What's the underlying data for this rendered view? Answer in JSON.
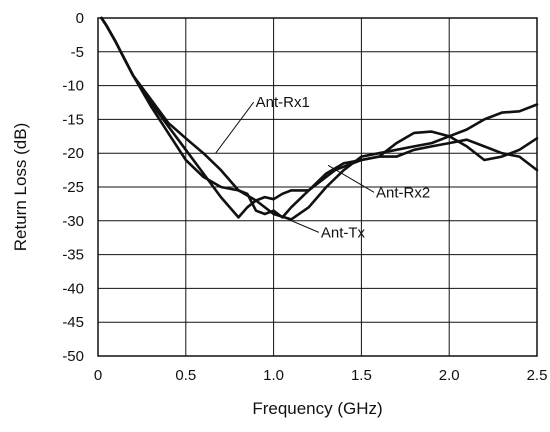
{
  "chart_data": {
    "type": "line",
    "title": "",
    "xlabel": "Frequency (GHz)",
    "ylabel": "Return Loss (dB)",
    "xlim": [
      0,
      2.5
    ],
    "ylim": [
      -50,
      0
    ],
    "x_ticks": [
      "0",
      "0.5",
      "1.0",
      "1.5",
      "2.0",
      "2.5"
    ],
    "y_ticks": [
      "0",
      "-5",
      "-10",
      "-15",
      "-20",
      "-25",
      "-30",
      "-35",
      "-40",
      "-45",
      "-50"
    ],
    "grid": true,
    "legend": "none",
    "series": [
      {
        "name": "Ant-Rx1",
        "x": [
          0.02,
          0.05,
          0.1,
          0.15,
          0.2,
          0.3,
          0.4,
          0.5,
          0.6,
          0.7,
          0.8,
          0.9,
          1.0,
          1.1,
          1.2,
          1.3,
          1.4,
          1.5,
          1.6,
          1.7,
          1.8,
          1.9,
          2.0,
          2.1,
          2.2,
          2.3,
          2.4,
          2.5
        ],
        "y": [
          0,
          -1.2,
          -3.5,
          -6.0,
          -8.5,
          -12.0,
          -15.5,
          -17.8,
          -20.0,
          -22.5,
          -25.5,
          -27.0,
          -29.0,
          -29.8,
          -28.0,
          -25.0,
          -22.5,
          -20.5,
          -20.0,
          -19.5,
          -19.0,
          -18.5,
          -17.5,
          -16.5,
          -15.0,
          -14.0,
          -13.8,
          -12.8
        ]
      },
      {
        "name": "Ant-Rx2",
        "x": [
          0.02,
          0.05,
          0.1,
          0.15,
          0.2,
          0.3,
          0.4,
          0.5,
          0.6,
          0.7,
          0.8,
          0.85,
          0.9,
          0.95,
          1.0,
          1.05,
          1.1,
          1.2,
          1.3,
          1.35,
          1.4,
          1.5,
          1.6,
          1.7,
          1.8,
          1.9,
          2.0,
          2.1,
          2.2,
          2.3,
          2.4,
          2.5
        ],
        "y": [
          0,
          -1.2,
          -3.5,
          -6.0,
          -8.5,
          -12.5,
          -16.0,
          -19.5,
          -23.0,
          -26.5,
          -29.5,
          -28.0,
          -27.0,
          -26.5,
          -26.8,
          -26.0,
          -25.5,
          -25.5,
          -23.5,
          -22.5,
          -22.0,
          -21.0,
          -20.5,
          -20.5,
          -19.5,
          -19.0,
          -18.5,
          -18.0,
          -19.0,
          -20.0,
          -20.5,
          -22.5
        ]
      },
      {
        "name": "Ant-Tx",
        "x": [
          0.02,
          0.05,
          0.1,
          0.15,
          0.2,
          0.3,
          0.4,
          0.5,
          0.6,
          0.7,
          0.8,
          0.85,
          0.9,
          0.95,
          1.0,
          1.05,
          1.1,
          1.2,
          1.3,
          1.4,
          1.5,
          1.6,
          1.7,
          1.8,
          1.9,
          2.0,
          2.1,
          2.2,
          2.3,
          2.4,
          2.5
        ],
        "y": [
          0,
          -1.2,
          -3.5,
          -6.0,
          -8.5,
          -13.0,
          -17.0,
          -21.0,
          -23.5,
          -25.0,
          -25.5,
          -26.0,
          -28.5,
          -29.0,
          -28.5,
          -29.5,
          -28.0,
          -25.5,
          -23.0,
          -21.5,
          -21.0,
          -20.5,
          -18.5,
          -17.0,
          -16.8,
          -17.5,
          -19.0,
          -21.0,
          -20.5,
          -19.5,
          -17.8
        ]
      }
    ],
    "annotations": [
      {
        "text": "Ant-Rx1",
        "point_x": 0.67,
        "point_y": -20.0
      },
      {
        "text": "Ant-Rx2",
        "point_x": 1.31,
        "point_y": -21.8
      },
      {
        "text": "Ant-Tx",
        "point_x": 1.03,
        "point_y": -29.2
      }
    ]
  }
}
